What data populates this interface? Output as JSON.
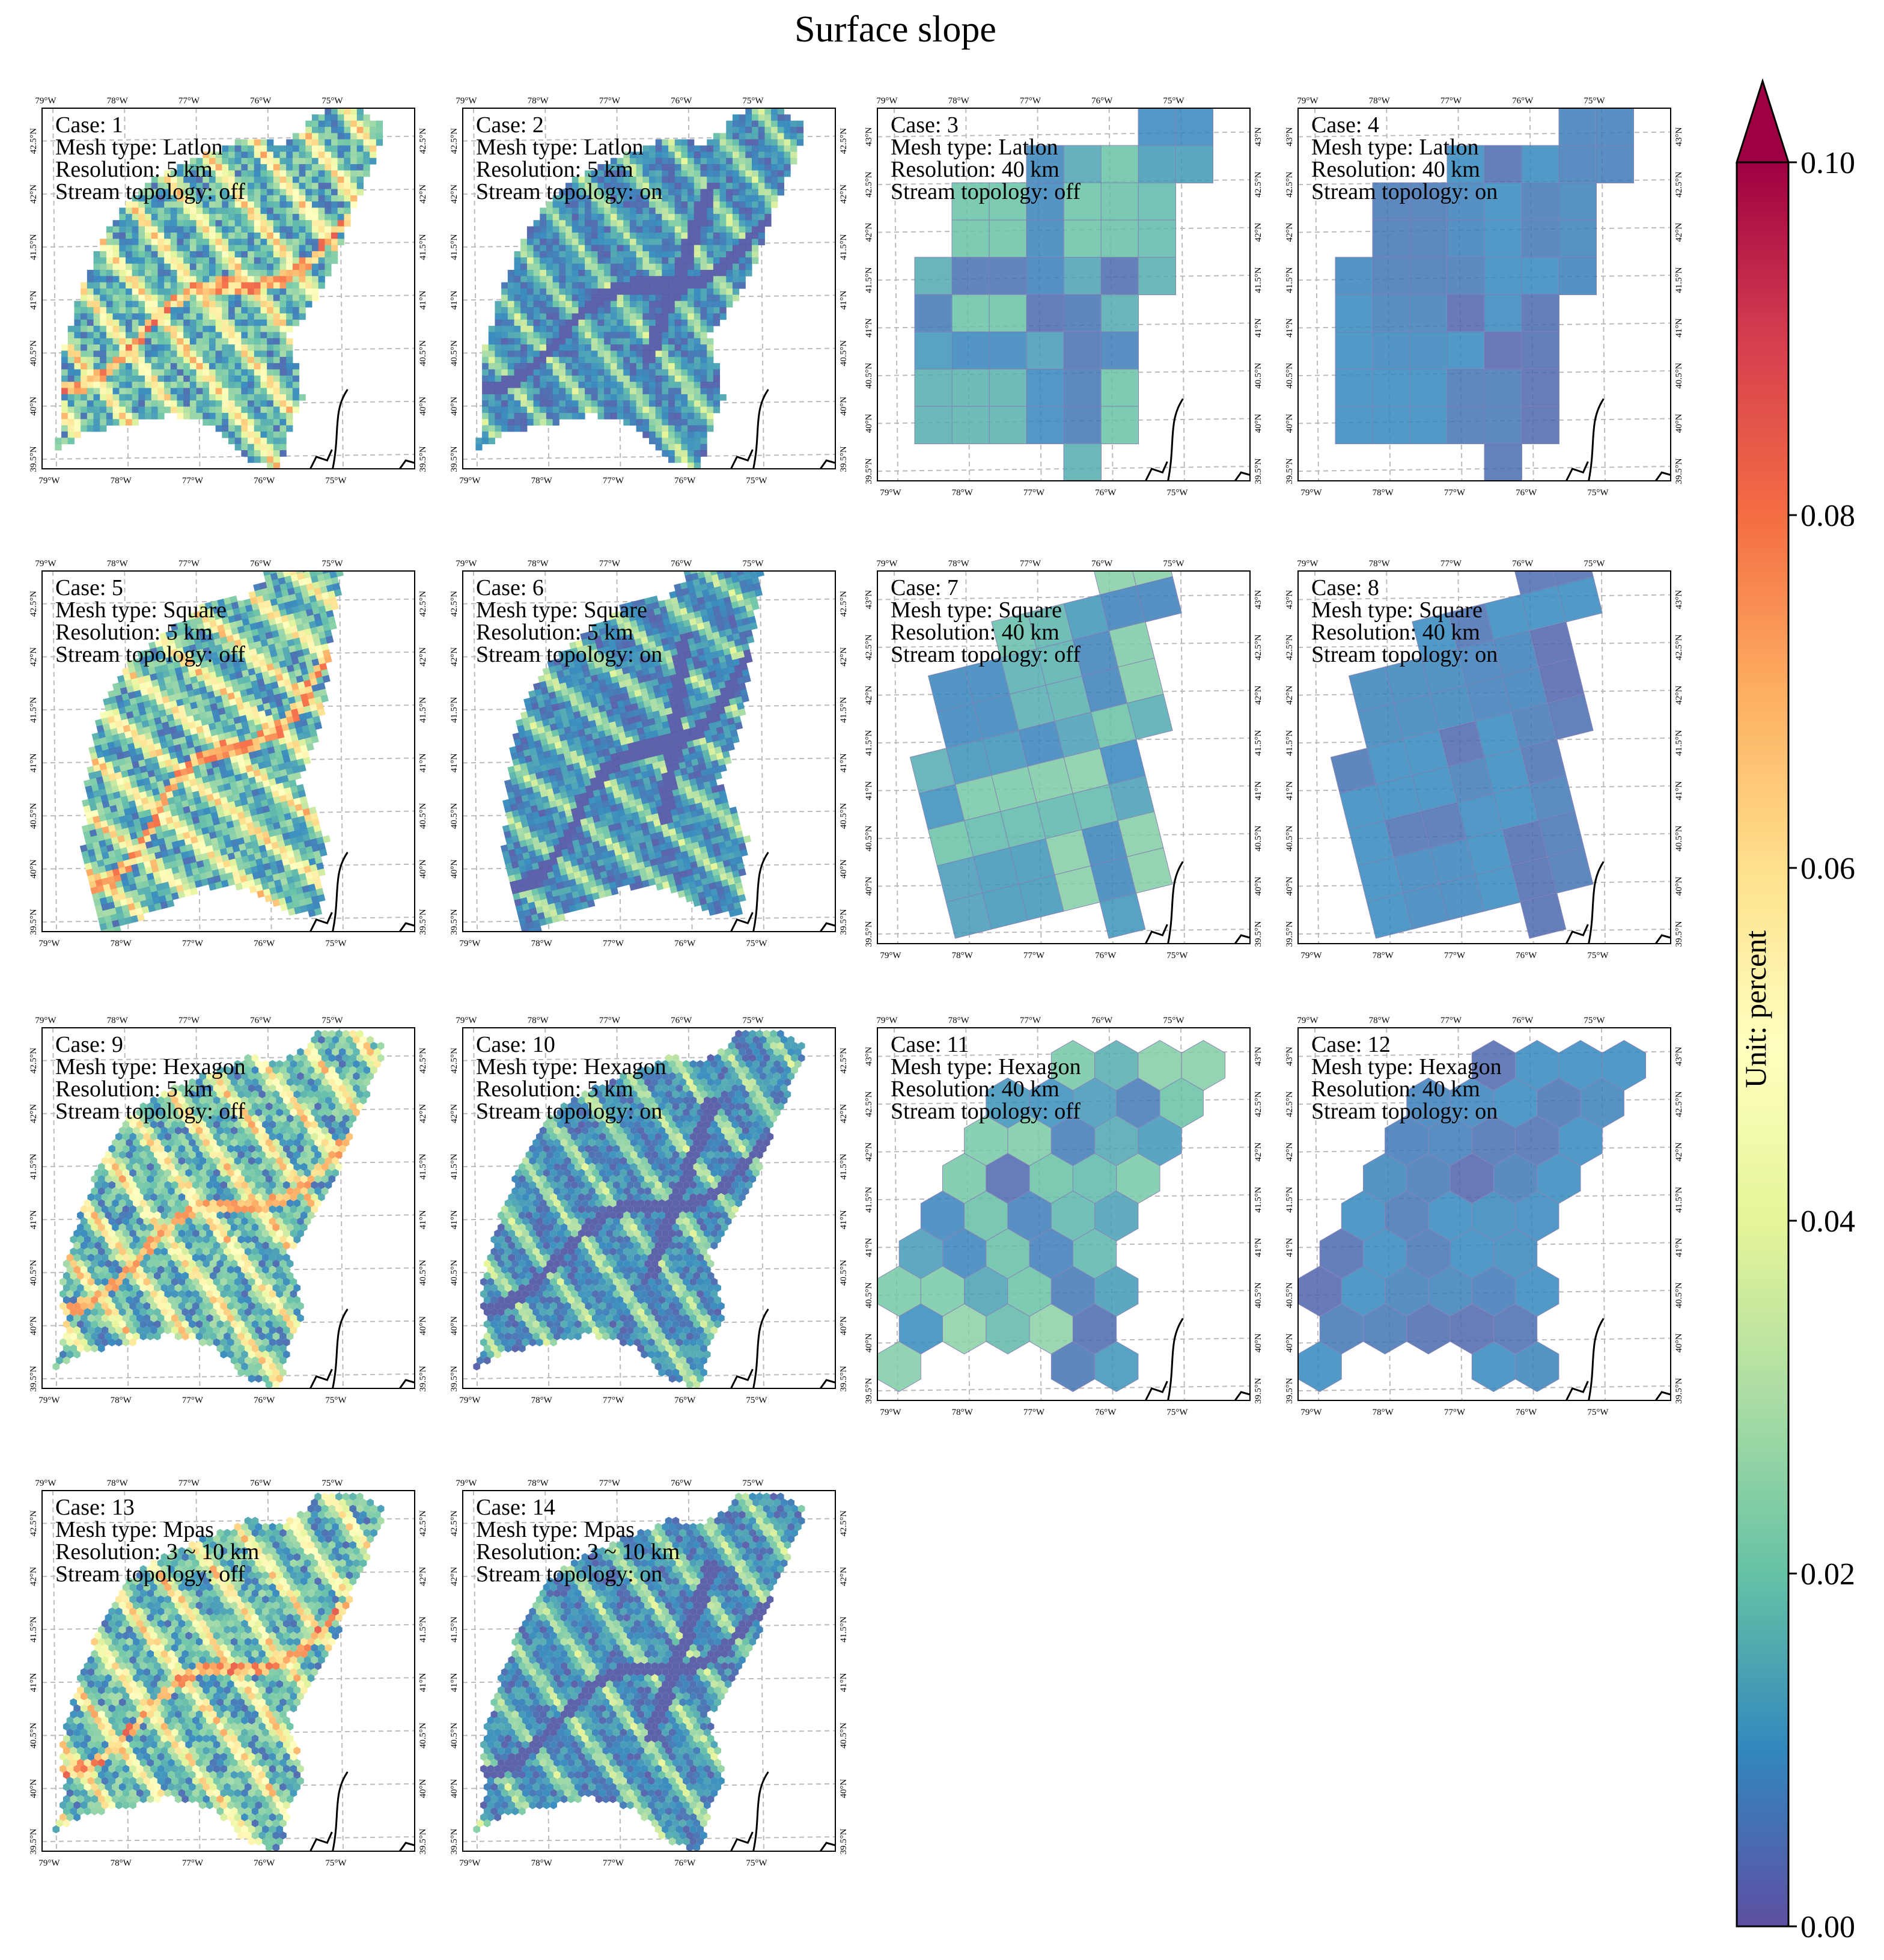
{
  "title": "Surface slope",
  "colorbar": {
    "label": "Unit: percent",
    "ticks": [
      "0.00",
      "0.02",
      "0.04",
      "0.06",
      "0.08",
      "0.10"
    ],
    "vmin": 0.0,
    "vmax": 0.1,
    "extend": "max",
    "colormap": [
      "#5e4fa2",
      "#3288bd",
      "#66c2a5",
      "#abdda4",
      "#e6f598",
      "#ffffbf",
      "#fee08b",
      "#fdae61",
      "#f46d43",
      "#d53e4f",
      "#9e0142"
    ]
  },
  "axes": {
    "lon_ticks": [
      "79°W",
      "78°W",
      "77°W",
      "76°W",
      "75°W"
    ],
    "lat_ticks": [
      "39.5°N",
      "40°N",
      "40.5°N",
      "41°N",
      "41.5°N",
      "42°N",
      "42.5°N",
      "43°N"
    ]
  },
  "panels": [
    {
      "case_label": "Case: 1",
      "mesh_label": "Mesh type: Latlon",
      "res_label": "Resolution: 5 km",
      "stream_label": "Stream topology: off",
      "mesh": "square",
      "fine": true,
      "stream": false,
      "max_slope": 0.085
    },
    {
      "case_label": "Case: 2",
      "mesh_label": "Mesh type: Latlon",
      "res_label": "Resolution: 5 km",
      "stream_label": "Stream topology: on",
      "mesh": "square",
      "fine": true,
      "stream": true,
      "max_slope": 0.06
    },
    {
      "case_label": "Case: 3",
      "mesh_label": "Mesh type: Latlon",
      "res_label": "Resolution: 40 km",
      "stream_label": "Stream topology: off",
      "mesh": "square",
      "fine": false,
      "stream": false,
      "max_slope": 0.02
    },
    {
      "case_label": "Case: 4",
      "mesh_label": "Mesh type: Latlon",
      "res_label": "Resolution: 40 km",
      "stream_label": "Stream topology: on",
      "mesh": "square",
      "fine": false,
      "stream": true,
      "max_slope": 0.01
    },
    {
      "case_label": "Case: 5",
      "mesh_label": "Mesh type: Square",
      "res_label": "Resolution: 5 km",
      "stream_label": "Stream topology: off",
      "mesh": "rotated",
      "fine": true,
      "stream": false,
      "max_slope": 0.08
    },
    {
      "case_label": "Case: 6",
      "mesh_label": "Mesh type: Square",
      "res_label": "Resolution: 5 km",
      "stream_label": "Stream topology: on",
      "mesh": "rotated",
      "fine": true,
      "stream": true,
      "max_slope": 0.06
    },
    {
      "case_label": "Case: 7",
      "mesh_label": "Mesh type: Square",
      "res_label": "Resolution: 40 km",
      "stream_label": "Stream topology: off",
      "mesh": "rotated",
      "fine": false,
      "stream": false,
      "max_slope": 0.025
    },
    {
      "case_label": "Case: 8",
      "mesh_label": "Mesh type: Square",
      "res_label": "Resolution: 40 km",
      "stream_label": "Stream topology: on",
      "mesh": "rotated",
      "fine": false,
      "stream": true,
      "max_slope": 0.01
    },
    {
      "case_label": "Case: 9",
      "mesh_label": "Mesh type: Hexagon",
      "res_label": "Resolution: 5 km",
      "stream_label": "Stream topology: off",
      "mesh": "hex",
      "fine": true,
      "stream": false,
      "max_slope": 0.075
    },
    {
      "case_label": "Case: 10",
      "mesh_label": "Mesh type: Hexagon",
      "res_label": "Resolution: 5 km",
      "stream_label": "Stream topology: on",
      "mesh": "hex",
      "fine": true,
      "stream": true,
      "max_slope": 0.06
    },
    {
      "case_label": "Case: 11",
      "mesh_label": "Mesh type: Hexagon",
      "res_label": "Resolution: 40 km",
      "stream_label": "Stream topology: off",
      "mesh": "hex",
      "fine": false,
      "stream": false,
      "max_slope": 0.025
    },
    {
      "case_label": "Case: 12",
      "mesh_label": "Mesh type: Hexagon",
      "res_label": "Resolution: 40 km",
      "stream_label": "Stream topology: on",
      "mesh": "hex",
      "fine": false,
      "stream": true,
      "max_slope": 0.01
    },
    {
      "case_label": "Case: 13",
      "mesh_label": "Mesh type: Mpas",
      "res_label": "Resolution: 3 ~ 10 km",
      "stream_label": "Stream topology: off",
      "mesh": "mpas",
      "fine": true,
      "stream": false,
      "max_slope": 0.09
    },
    {
      "case_label": "Case: 14",
      "mesh_label": "Mesh type: Mpas",
      "res_label": "Resolution: 3 ~ 10 km",
      "stream_label": "Stream topology: on",
      "mesh": "mpas",
      "fine": true,
      "stream": true,
      "max_slope": 0.06
    }
  ]
}
